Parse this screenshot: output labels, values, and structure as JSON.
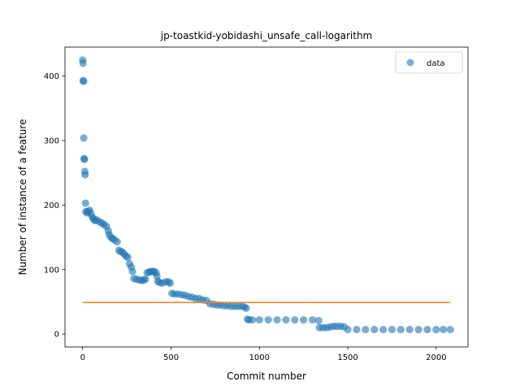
{
  "chart_data": {
    "type": "scatter",
    "title": "jp-toastkid-yobidashi_unsafe_call-logarithm",
    "xlabel": "Commit number",
    "ylabel": "Number of instance of a feature",
    "xlim": [
      -100,
      2180
    ],
    "ylim": [
      -20,
      445
    ],
    "xticks": [
      0,
      500,
      1000,
      1500,
      2000
    ],
    "yticks": [
      0,
      100,
      200,
      300,
      400
    ],
    "legend": {
      "position": "top-right",
      "entries": [
        "data"
      ]
    },
    "colors": {
      "data": "#1f77b4",
      "fit": "#ff7f0e"
    },
    "series": [
      {
        "name": "data",
        "kind": "points",
        "points": [
          [
            0,
            425
          ],
          [
            2,
            420
          ],
          [
            3,
            393
          ],
          [
            5,
            392
          ],
          [
            6,
            304
          ],
          [
            8,
            272
          ],
          [
            10,
            271
          ],
          [
            12,
            252
          ],
          [
            14,
            247
          ],
          [
            16,
            203
          ],
          [
            18,
            190
          ],
          [
            25,
            188
          ],
          [
            32,
            190
          ],
          [
            40,
            192
          ],
          [
            48,
            186
          ],
          [
            55,
            181
          ],
          [
            62,
            178
          ],
          [
            70,
            176
          ],
          [
            80,
            177
          ],
          [
            95,
            174
          ],
          [
            110,
            172
          ],
          [
            120,
            170
          ],
          [
            135,
            167
          ],
          [
            145,
            160
          ],
          [
            150,
            154
          ],
          [
            160,
            150
          ],
          [
            170,
            148
          ],
          [
            180,
            146
          ],
          [
            195,
            143
          ],
          [
            205,
            130
          ],
          [
            215,
            128
          ],
          [
            225,
            127
          ],
          [
            235,
            124
          ],
          [
            245,
            121
          ],
          [
            255,
            119
          ],
          [
            265,
            109
          ],
          [
            275,
            104
          ],
          [
            282,
            97
          ],
          [
            290,
            86
          ],
          [
            305,
            85
          ],
          [
            320,
            84
          ],
          [
            335,
            83
          ],
          [
            345,
            84
          ],
          [
            355,
            85
          ],
          [
            365,
            95
          ],
          [
            375,
            96
          ],
          [
            385,
            97
          ],
          [
            395,
            97
          ],
          [
            405,
            97
          ],
          [
            415,
            95
          ],
          [
            420,
            90
          ],
          [
            425,
            82
          ],
          [
            435,
            80
          ],
          [
            450,
            79
          ],
          [
            470,
            81
          ],
          [
            485,
            81
          ],
          [
            495,
            79
          ],
          [
            505,
            63
          ],
          [
            520,
            62
          ],
          [
            540,
            62
          ],
          [
            560,
            61
          ],
          [
            580,
            60
          ],
          [
            600,
            58
          ],
          [
            620,
            57
          ],
          [
            640,
            55
          ],
          [
            660,
            55
          ],
          [
            680,
            53
          ],
          [
            700,
            52
          ],
          [
            720,
            47
          ],
          [
            740,
            46
          ],
          [
            760,
            45
          ],
          [
            780,
            45
          ],
          [
            800,
            44
          ],
          [
            820,
            44
          ],
          [
            840,
            43
          ],
          [
            860,
            43
          ],
          [
            880,
            43
          ],
          [
            900,
            43
          ],
          [
            915,
            42
          ],
          [
            925,
            40
          ],
          [
            932,
            23
          ],
          [
            940,
            22
          ],
          [
            960,
            22
          ],
          [
            1000,
            22
          ],
          [
            1050,
            22
          ],
          [
            1100,
            22
          ],
          [
            1150,
            22
          ],
          [
            1200,
            22
          ],
          [
            1250,
            22
          ],
          [
            1300,
            22
          ],
          [
            1335,
            21
          ],
          [
            1340,
            10
          ],
          [
            1360,
            10
          ],
          [
            1380,
            10
          ],
          [
            1400,
            11
          ],
          [
            1420,
            12
          ],
          [
            1440,
            12
          ],
          [
            1460,
            12
          ],
          [
            1480,
            11
          ],
          [
            1500,
            7
          ],
          [
            1550,
            7
          ],
          [
            1600,
            7
          ],
          [
            1650,
            7
          ],
          [
            1700,
            7
          ],
          [
            1750,
            7
          ],
          [
            1800,
            7
          ],
          [
            1850,
            7
          ],
          [
            1900,
            7
          ],
          [
            1950,
            7
          ],
          [
            2000,
            7
          ],
          [
            2040,
            7
          ],
          [
            2080,
            7
          ]
        ]
      },
      {
        "name": "",
        "kind": "line",
        "points": [
          [
            0,
            49
          ],
          [
            2080,
            49
          ]
        ]
      }
    ]
  }
}
